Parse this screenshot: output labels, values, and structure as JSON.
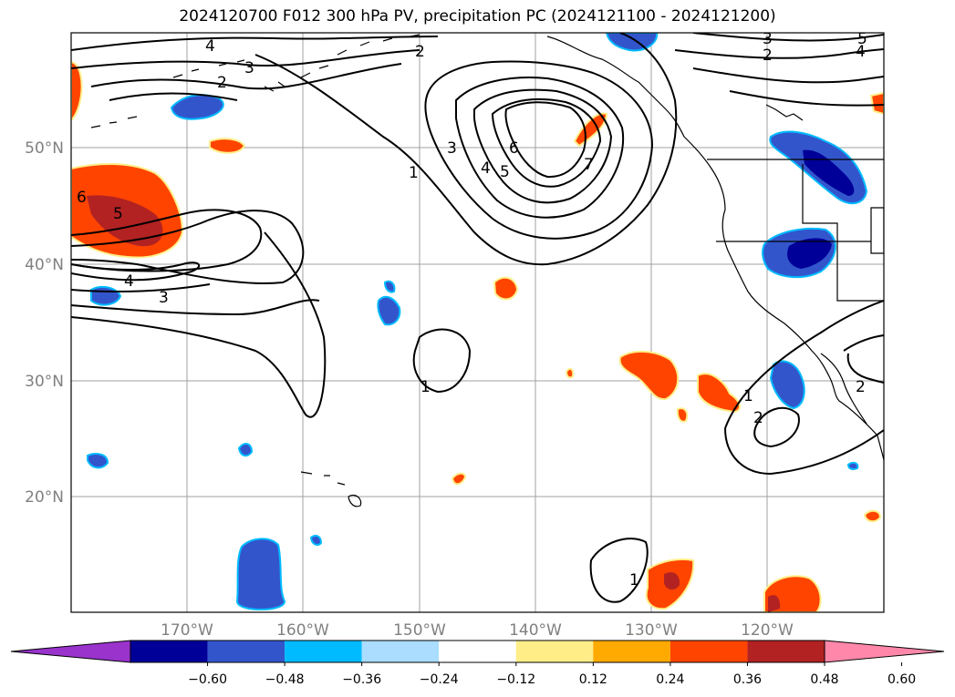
{
  "title": "2024120700 F012 300 hPa PV, precipitation PC (2024121100 - 2024121200)",
  "map": {
    "lon_labels": [
      "170°W",
      "160°W",
      "150°W",
      "140°W",
      "130°W",
      "120°W"
    ],
    "lat_labels": [
      "50°N",
      "40°N",
      "30°N",
      "20°N"
    ],
    "grid": true
  },
  "pv_contour_labels": [
    "4",
    "3",
    "2",
    "2",
    "3",
    "2",
    "5",
    "4",
    "1",
    "3",
    "4",
    "5",
    "6",
    "7",
    "6",
    "5",
    "4",
    "3",
    "1",
    "1",
    "2",
    "1",
    "2"
  ],
  "colorbar": {
    "ticks": [
      "−0.60",
      "−0.48",
      "−0.36",
      "−0.24",
      "−0.12",
      "0.12",
      "0.24",
      "0.36",
      "0.48",
      "0.60"
    ],
    "colors": [
      "#9933cc",
      "#000099",
      "#3355cc",
      "#00bbff",
      "#aaddff",
      "#ffffff",
      "#ffee88",
      "#ffaa00",
      "#ff4400",
      "#b22222",
      "#ff88aa"
    ]
  },
  "palette": {
    "neg_strong": "#000099",
    "neg_mid": "#3355cc",
    "neg_light": "#00bbff",
    "pos_light": "#ffee88",
    "pos_mid": "#ff4400",
    "pos_strong": "#b22222"
  }
}
